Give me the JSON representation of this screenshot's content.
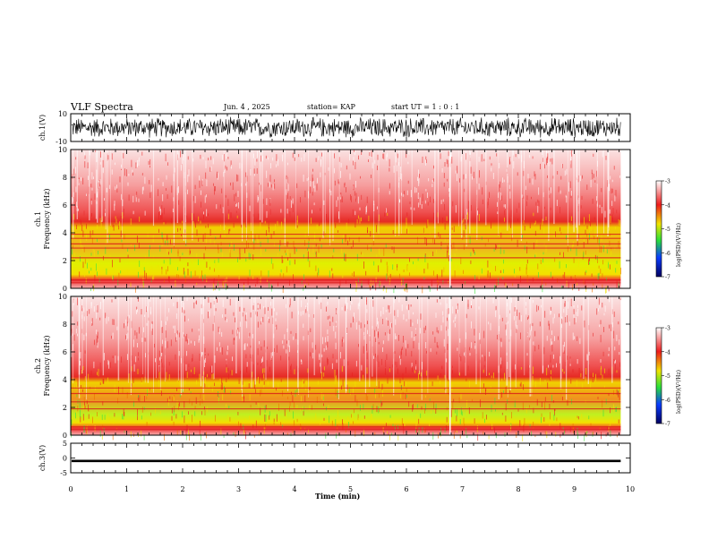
{
  "header": {
    "title": "VLF Spectra",
    "date": "Jun. 4 , 2025",
    "station": "station= KAP",
    "start": "start UT = 1 : 0 : 1"
  },
  "colors": {
    "axis": "#000000",
    "red": "#ee1c1c",
    "yellow": "#f0e400",
    "green": "#29e03a",
    "blue": "#0a3cff",
    "navy": "#000060"
  },
  "chart_data": [
    {
      "type": "line",
      "panel": "ch.1(V)",
      "ylabel": "ch.1(V)",
      "ylim": [
        -10,
        10
      ],
      "yticks": [
        "10",
        "-10"
      ],
      "x_unit": "min",
      "xlim": [
        0,
        10
      ],
      "series": [
        {
          "values_description": "noisy broadband waveform spanning roughly -8 to +8 V over 0–9.8 min",
          "amplitude": 8
        }
      ]
    },
    {
      "type": "heatmap",
      "panel": "ch.1",
      "ylabel": "ch.1 Frequency (kHz)",
      "ylim": [
        0,
        10
      ],
      "yticks": [
        "0",
        "2",
        "4",
        "6",
        "8",
        "10"
      ],
      "xlim": [
        0,
        10
      ],
      "data_end_min": 9.83,
      "colorbar": {
        "label": "log(PSD)(V²/Hz)",
        "range": [
          -7,
          -3
        ],
        "ticks": [
          "-3",
          "-4",
          "-5",
          "-6",
          "-7"
        ]
      },
      "bands_khz": [
        0.4,
        0.6,
        2.2,
        2.9,
        3.2,
        3.6,
        3.9
      ],
      "transition_khz": 4.5
    },
    {
      "type": "heatmap",
      "panel": "ch.2",
      "ylabel": "ch.2 Frequency (kHz)",
      "ylim": [
        0,
        10
      ],
      "yticks": [
        "0",
        "2",
        "4",
        "6",
        "8",
        "10"
      ],
      "xlim": [
        0,
        10
      ],
      "data_end_min": 9.83,
      "colorbar": {
        "label": "log(PSD)(V²/Hz)",
        "range": [
          -7,
          -3
        ],
        "ticks": [
          "-3",
          "-4",
          "-5",
          "-6",
          "-7"
        ]
      },
      "bands_khz": [
        0.4,
        0.6,
        1.9,
        2.4,
        3.0,
        3.4
      ],
      "transition_khz": 4.0
    },
    {
      "type": "line",
      "panel": "ch.3(V)",
      "ylabel": "ch.3(V)",
      "ylim": [
        -5,
        5
      ],
      "yticks": [
        "5",
        "0",
        "-5"
      ],
      "xlim": [
        0,
        10
      ],
      "xlabel": "Time (min)",
      "xticks": [
        "0",
        "1",
        "2",
        "3",
        "4",
        "5",
        "6",
        "7",
        "8",
        "9",
        "10"
      ],
      "series": [
        {
          "values_description": "dense oscillation around -1 V with ±0.5 V envelope"
        }
      ]
    }
  ]
}
